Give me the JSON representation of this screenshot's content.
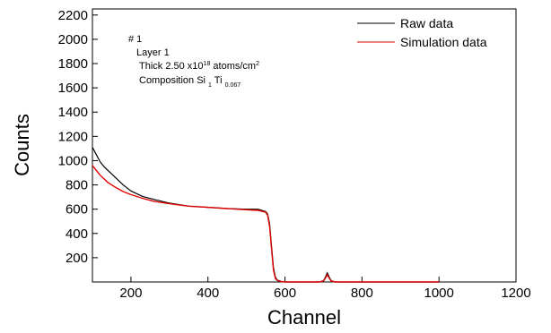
{
  "chart_data": {
    "type": "line",
    "xlabel": "Channel",
    "ylabel": "Counts",
    "xlim": [
      100,
      1200
    ],
    "ylim": [
      0,
      2250
    ],
    "x_ticks": [
      200,
      400,
      600,
      800,
      1000,
      1200
    ],
    "y_ticks": [
      200,
      400,
      600,
      800,
      1000,
      1200,
      1400,
      1600,
      1800,
      2000,
      2200
    ],
    "legend_position": "top-right",
    "annotation": {
      "line1": "# 1",
      "line2": "Layer 1",
      "thick_prefix": "Thick 2.50 x10",
      "thick_exp": "18",
      "thick_mid": " atoms/cm",
      "thick_exp2": "2",
      "comp_prefix": "Composition Si ",
      "comp_sub1": "1",
      "comp_ti": " Ti ",
      "comp_sub2": "0.067"
    },
    "series": [
      {
        "name": "Raw data",
        "color": "#000000",
        "x": [
          100,
          110,
          120,
          130,
          140,
          160,
          180,
          200,
          230,
          260,
          300,
          350,
          400,
          450,
          500,
          530,
          550,
          555,
          560,
          565,
          570,
          575,
          580,
          590,
          600,
          650,
          690,
          700,
          705,
          710,
          715,
          720,
          730,
          800,
          900,
          1000
        ],
        "y": [
          1110,
          1050,
          990,
          950,
          920,
          860,
          800,
          750,
          705,
          680,
          650,
          625,
          615,
          605,
          600,
          600,
          580,
          560,
          480,
          300,
          120,
          40,
          15,
          5,
          0,
          0,
          0,
          10,
          40,
          75,
          40,
          10,
          0,
          0,
          0,
          0
        ]
      },
      {
        "name": "Simulation data",
        "color": "#e00000",
        "x": [
          100,
          110,
          120,
          130,
          140,
          160,
          180,
          200,
          230,
          260,
          300,
          350,
          400,
          450,
          500,
          530,
          550,
          555,
          560,
          565,
          570,
          575,
          580,
          590,
          600,
          650,
          690,
          700,
          705,
          710,
          715,
          720,
          730,
          800,
          900,
          1000
        ],
        "y": [
          960,
          920,
          880,
          850,
          820,
          780,
          745,
          720,
          690,
          665,
          645,
          625,
          615,
          605,
          595,
          590,
          575,
          550,
          460,
          280,
          100,
          30,
          12,
          3,
          0,
          0,
          0,
          8,
          32,
          60,
          32,
          8,
          0,
          0,
          0,
          0
        ]
      }
    ]
  }
}
